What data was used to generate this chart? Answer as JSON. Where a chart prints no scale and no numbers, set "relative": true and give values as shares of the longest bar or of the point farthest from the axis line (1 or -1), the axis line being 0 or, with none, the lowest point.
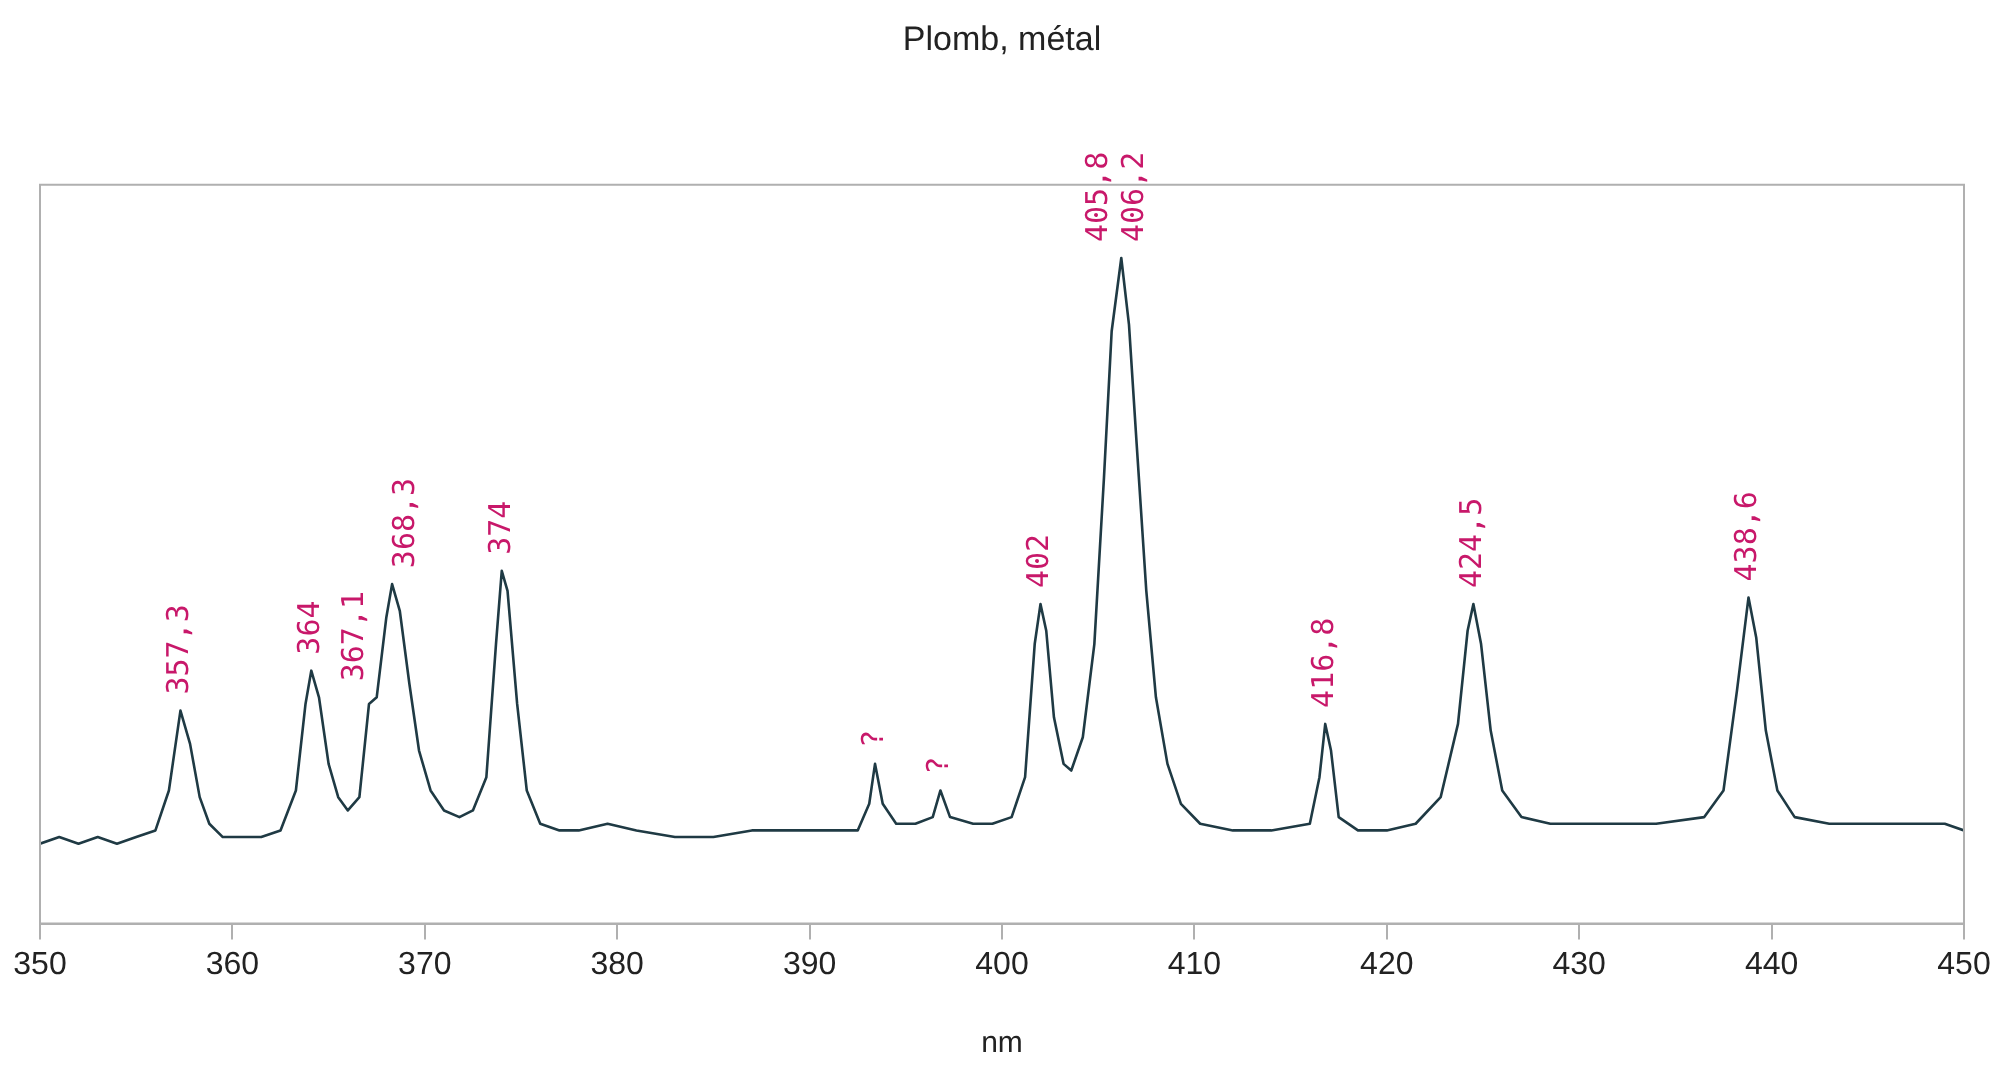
{
  "chart_data": {
    "type": "line",
    "title": "Plomb, métal",
    "xlabel": "nm",
    "relative": true,
    "xlim": [
      350,
      450
    ],
    "xticks": [
      350,
      360,
      370,
      380,
      390,
      400,
      410,
      420,
      430,
      440,
      450
    ],
    "grid": false,
    "legend": false,
    "marker": "none",
    "line_style": "solid",
    "x": [
      350,
      351,
      352,
      353,
      354,
      355,
      356,
      356.7,
      357.3,
      357.8,
      358.3,
      358.8,
      359.5,
      360.5,
      361.5,
      362.5,
      363.3,
      363.8,
      364.1,
      364.5,
      365,
      365.5,
      366,
      366.6,
      367.1,
      367.5,
      368,
      368.3,
      368.7,
      369.2,
      369.7,
      370.3,
      371,
      371.8,
      372.5,
      373.2,
      373.7,
      374,
      374.3,
      374.8,
      375.3,
      376,
      377,
      378,
      379.5,
      381,
      383,
      385,
      387,
      389,
      391,
      392.5,
      393.1,
      393.4,
      393.8,
      394.5,
      395.5,
      396.4,
      396.8,
      397.3,
      398.5,
      399.5,
      400.5,
      401.2,
      401.7,
      402,
      402.3,
      402.7,
      403.2,
      403.6,
      404.2,
      404.8,
      405.3,
      405.7,
      406.2,
      406.6,
      407,
      407.5,
      408,
      408.6,
      409.3,
      410.3,
      412,
      414,
      416,
      416.5,
      416.8,
      417.1,
      417.5,
      418.5,
      420,
      421.5,
      422.8,
      423.7,
      424.2,
      424.5,
      424.9,
      425.4,
      426,
      427,
      428.5,
      431,
      434,
      436.5,
      437.5,
      438.2,
      438.8,
      439.2,
      439.7,
      440.3,
      441.2,
      443,
      445,
      447,
      449,
      450
    ],
    "series": [
      {
        "color": "#1f3a44",
        "values": [
          0.12,
          0.13,
          0.12,
          0.13,
          0.12,
          0.13,
          0.14,
          0.2,
          0.32,
          0.27,
          0.19,
          0.15,
          0.13,
          0.13,
          0.13,
          0.14,
          0.2,
          0.33,
          0.38,
          0.34,
          0.24,
          0.19,
          0.17,
          0.19,
          0.33,
          0.34,
          0.46,
          0.51,
          0.47,
          0.36,
          0.26,
          0.2,
          0.17,
          0.16,
          0.17,
          0.22,
          0.42,
          0.53,
          0.5,
          0.33,
          0.2,
          0.15,
          0.14,
          0.14,
          0.15,
          0.14,
          0.13,
          0.13,
          0.14,
          0.14,
          0.14,
          0.14,
          0.18,
          0.24,
          0.18,
          0.15,
          0.15,
          0.16,
          0.2,
          0.16,
          0.15,
          0.15,
          0.16,
          0.22,
          0.42,
          0.48,
          0.44,
          0.31,
          0.24,
          0.23,
          0.28,
          0.42,
          0.67,
          0.89,
          1,
          0.9,
          0.72,
          0.5,
          0.34,
          0.24,
          0.18,
          0.15,
          0.14,
          0.14,
          0.15,
          0.22,
          0.3,
          0.26,
          0.16,
          0.14,
          0.14,
          0.15,
          0.19,
          0.3,
          0.44,
          0.48,
          0.42,
          0.29,
          0.2,
          0.16,
          0.15,
          0.15,
          0.15,
          0.16,
          0.2,
          0.35,
          0.49,
          0.43,
          0.29,
          0.2,
          0.16,
          0.15,
          0.15,
          0.15,
          0.15,
          0.14
        ]
      }
    ],
    "annotations": [
      {
        "text": "357,3",
        "x": 357.3,
        "y": 0.32
      },
      {
        "text": "364",
        "x": 364.1,
        "y": 0.38
      },
      {
        "text": "367,1",
        "x": 367.1,
        "y": 0.34
      },
      {
        "text": "368,3",
        "x": 368.3,
        "y": 0.51
      },
      {
        "text": "374",
        "x": 374,
        "y": 0.53
      },
      {
        "text": "?",
        "x": 393.4,
        "y": 0.24
      },
      {
        "text": "?",
        "x": 396.8,
        "y": 0.2
      },
      {
        "text": "402",
        "x": 402,
        "y": 0.48
      },
      {
        "text": "405,8",
        "x": 405.8,
        "y": 1
      },
      {
        "text": "406,2",
        "x": 406.2,
        "y": 1
      },
      {
        "text": "416,8",
        "x": 416.8,
        "y": 0.3
      },
      {
        "text": "424,5",
        "x": 424.5,
        "y": 0.48
      },
      {
        "text": "438,6",
        "x": 438.8,
        "y": 0.49
      }
    ]
  }
}
